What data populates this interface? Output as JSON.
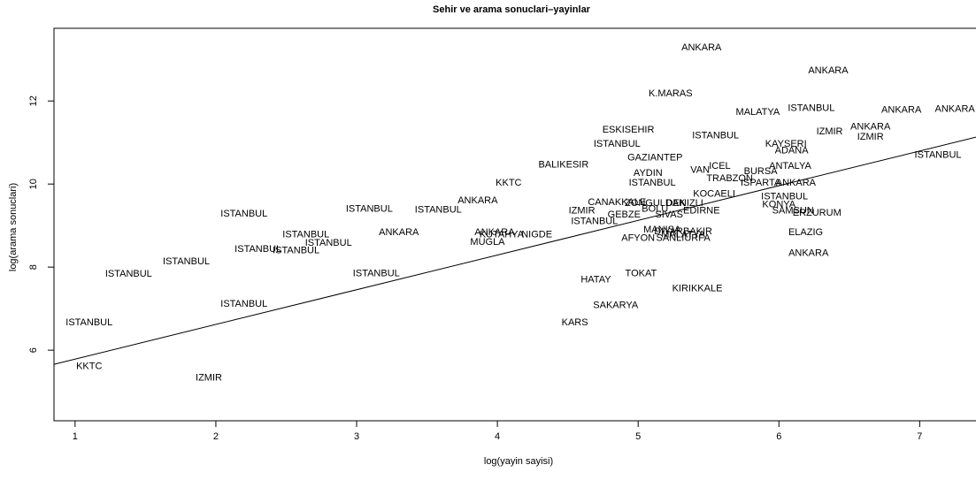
{
  "chart_data": {
    "type": "scatter",
    "title": "Sehir ve arama sonuclari–yayinlar",
    "xlabel": "log(yayin sayisi)",
    "ylabel": "log(arama sonuclari)",
    "xlim": [
      0.85,
      7.4
    ],
    "ylim": [
      4.3,
      13.75
    ],
    "x_ticks": [
      1,
      2,
      3,
      4,
      5,
      6,
      7
    ],
    "y_ticks": [
      6,
      8,
      10,
      12
    ],
    "grid": false,
    "marker": "text labels",
    "regression_line": {
      "intercept": 4.95,
      "slope": 0.835
    },
    "points": [
      {
        "label": "ANKARA",
        "x": 5.45,
        "y": 13.3
      },
      {
        "label": "ANKARA",
        "x": 6.35,
        "y": 12.75
      },
      {
        "label": "K.MARAS",
        "x": 5.23,
        "y": 12.2
      },
      {
        "label": "MALATYA",
        "x": 5.85,
        "y": 11.75
      },
      {
        "label": "ISTANBUL",
        "x": 6.23,
        "y": 11.85
      },
      {
        "label": "ANKARA",
        "x": 6.87,
        "y": 11.8
      },
      {
        "label": "ANKARA",
        "x": 7.25,
        "y": 11.82
      },
      {
        "label": "ESKISEHIR",
        "x": 4.93,
        "y": 11.32
      },
      {
        "label": "ISTANBUL",
        "x": 5.55,
        "y": 11.18
      },
      {
        "label": "IZMIR",
        "x": 6.36,
        "y": 11.28
      },
      {
        "label": "ANKARA",
        "x": 6.65,
        "y": 11.4
      },
      {
        "label": "IZMIR",
        "x": 6.65,
        "y": 11.15
      },
      {
        "label": "ISTANBUL",
        "x": 4.85,
        "y": 10.98
      },
      {
        "label": "KAYSERI",
        "x": 6.05,
        "y": 10.98
      },
      {
        "label": "ADANA",
        "x": 6.09,
        "y": 10.82
      },
      {
        "label": "ISTANBUL",
        "x": 7.13,
        "y": 10.72
      },
      {
        "label": "GAZIANTEP",
        "x": 5.12,
        "y": 10.65
      },
      {
        "label": "BALIKESIR",
        "x": 4.47,
        "y": 10.48
      },
      {
        "label": "ANTALYA",
        "x": 6.08,
        "y": 10.45
      },
      {
        "label": "ICEL",
        "x": 5.58,
        "y": 10.45
      },
      {
        "label": "VAN",
        "x": 5.44,
        "y": 10.35
      },
      {
        "label": "BURSA",
        "x": 5.87,
        "y": 10.32
      },
      {
        "label": "AYDIN",
        "x": 5.07,
        "y": 10.28
      },
      {
        "label": "TRABZON",
        "x": 5.65,
        "y": 10.15
      },
      {
        "label": "ISTANBUL",
        "x": 5.1,
        "y": 10.05
      },
      {
        "label": "ISPARTA",
        "x": 5.87,
        "y": 10.05
      },
      {
        "label": "ANKARA",
        "x": 6.12,
        "y": 10.05
      },
      {
        "label": "KKTC",
        "x": 4.08,
        "y": 10.05
      },
      {
        "label": "KOCAELI",
        "x": 5.54,
        "y": 9.78
      },
      {
        "label": "ISTANBUL",
        "x": 6.04,
        "y": 9.72
      },
      {
        "label": "ANKARA",
        "x": 3.86,
        "y": 9.62
      },
      {
        "label": "CANAKKALE",
        "x": 4.85,
        "y": 9.58
      },
      {
        "label": "ZONGULDAK",
        "x": 5.12,
        "y": 9.56
      },
      {
        "label": "DENIZLI",
        "x": 5.33,
        "y": 9.56
      },
      {
        "label": "KONYA",
        "x": 6.0,
        "y": 9.52
      },
      {
        "label": "BOLU",
        "x": 5.12,
        "y": 9.42
      },
      {
        "label": "IZMIR",
        "x": 4.6,
        "y": 9.38
      },
      {
        "label": "EDIRNE",
        "x": 5.45,
        "y": 9.38
      },
      {
        "label": "SAMSUN",
        "x": 6.1,
        "y": 9.38
      },
      {
        "label": "ISTANBUL",
        "x": 3.09,
        "y": 9.42
      },
      {
        "label": "ISTANBUL",
        "x": 3.58,
        "y": 9.4
      },
      {
        "label": "ERZURUM",
        "x": 6.27,
        "y": 9.32
      },
      {
        "label": "ISTANBUL",
        "x": 2.2,
        "y": 9.3
      },
      {
        "label": "GEBZE",
        "x": 4.9,
        "y": 9.28
      },
      {
        "label": "SIVAS",
        "x": 5.22,
        "y": 9.28
      },
      {
        "label": "ISTANBUL",
        "x": 4.69,
        "y": 9.12
      },
      {
        "label": "ANKARA",
        "x": 3.3,
        "y": 8.85
      },
      {
        "label": "ANKARA",
        "x": 3.98,
        "y": 8.85
      },
      {
        "label": "MANISA",
        "x": 5.17,
        "y": 8.92
      },
      {
        "label": "DIYARBAKIR",
        "x": 5.32,
        "y": 8.88
      },
      {
        "label": "ISTANBUL",
        "x": 2.64,
        "y": 8.8
      },
      {
        "label": "KUTAHYA",
        "x": 4.03,
        "y": 8.8
      },
      {
        "label": "NIGDE",
        "x": 4.28,
        "y": 8.8
      },
      {
        "label": "MALATYA",
        "x": 5.32,
        "y": 8.8
      },
      {
        "label": "ELAZIG",
        "x": 6.19,
        "y": 8.85
      },
      {
        "label": "AFYON",
        "x": 5.0,
        "y": 8.72
      },
      {
        "label": "SANLIURFA",
        "x": 5.32,
        "y": 8.72
      },
      {
        "label": "MUGLA",
        "x": 3.93,
        "y": 8.62
      },
      {
        "label": "ISTANBUL",
        "x": 2.8,
        "y": 8.6
      },
      {
        "label": "ISTANBUL",
        "x": 2.3,
        "y": 8.45
      },
      {
        "label": "ISTANBUL",
        "x": 2.57,
        "y": 8.42
      },
      {
        "label": "ANKARA",
        "x": 6.21,
        "y": 8.35
      },
      {
        "label": "ISTANBUL",
        "x": 1.79,
        "y": 8.15
      },
      {
        "label": "ISTANBUL",
        "x": 1.38,
        "y": 7.85
      },
      {
        "label": "ISTANBUL",
        "x": 3.14,
        "y": 7.87
      },
      {
        "label": "TOKAT",
        "x": 5.02,
        "y": 7.87
      },
      {
        "label": "HATAY",
        "x": 4.7,
        "y": 7.72
      },
      {
        "label": "KIRIKKALE",
        "x": 5.42,
        "y": 7.5
      },
      {
        "label": "ISTANBUL",
        "x": 2.2,
        "y": 7.13
      },
      {
        "label": "SAKARYA",
        "x": 4.84,
        "y": 7.1
      },
      {
        "label": "KARS",
        "x": 4.55,
        "y": 6.68
      },
      {
        "label": "ISTANBUL",
        "x": 1.1,
        "y": 6.68
      },
      {
        "label": "KKTC",
        "x": 1.1,
        "y": 5.63
      },
      {
        "label": "IZMIR",
        "x": 1.95,
        "y": 5.35
      }
    ]
  }
}
